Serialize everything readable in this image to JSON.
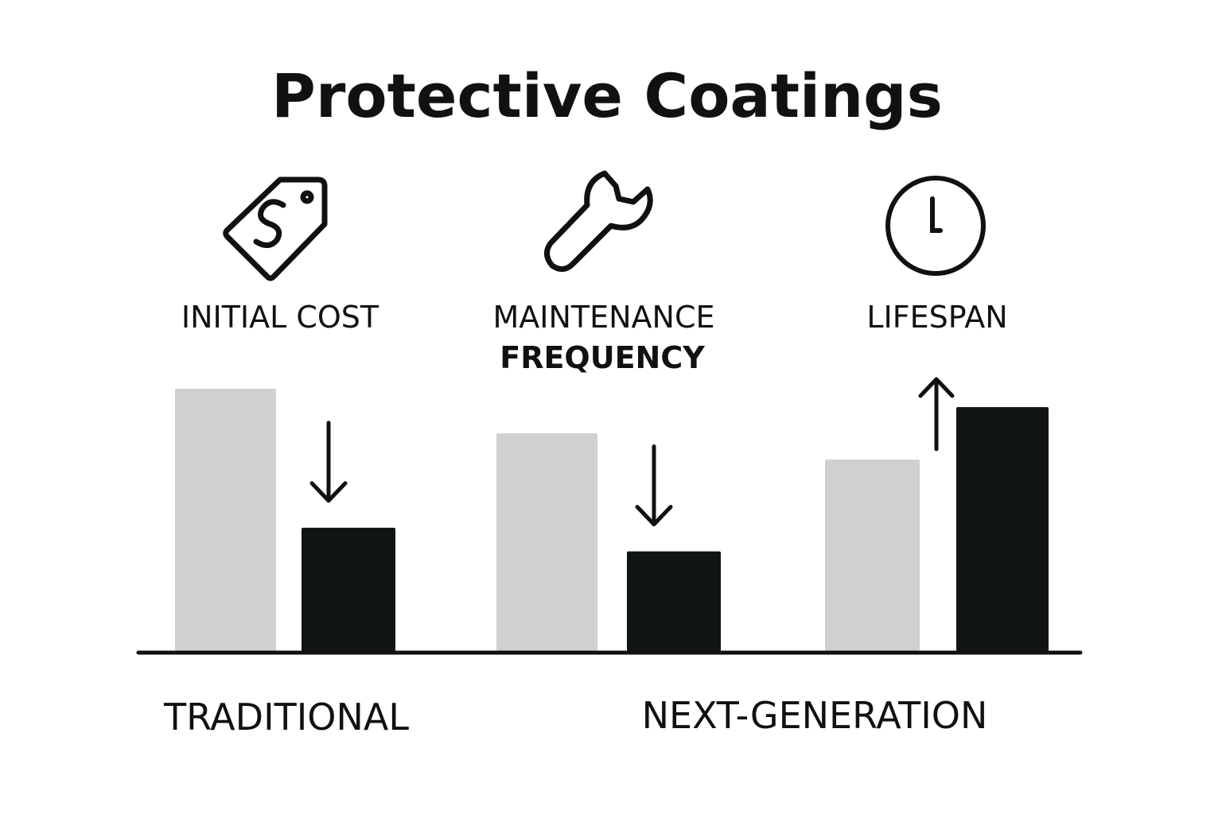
{
  "chart_data": {
    "type": "bar",
    "title": "Protective Coatings",
    "categories": [
      "INITIAL COST",
      "MAINTENANCE FREQUENCY",
      "LIFESPAN"
    ],
    "category_lines": [
      [
        "INITIAL COST"
      ],
      [
        "MAINTENANCE",
        "FREQUENCY"
      ],
      [
        "LIFESPAN"
      ]
    ],
    "category_icons": [
      "price-tag-dollar-icon",
      "wrench-icon",
      "clock-icon"
    ],
    "series": [
      {
        "name": "TRADITIONAL",
        "values": [
          100,
          83,
          73
        ],
        "color": "#d0d0d0"
      },
      {
        "name": "NEXT-GENERATION",
        "values": [
          47,
          38,
          93
        ],
        "color": "#101414"
      }
    ],
    "trend_arrows": [
      "down",
      "down",
      "up"
    ],
    "ylim": [
      0,
      100
    ],
    "value_axis_shown": false,
    "grid": false,
    "legend_placement": "bottom"
  }
}
